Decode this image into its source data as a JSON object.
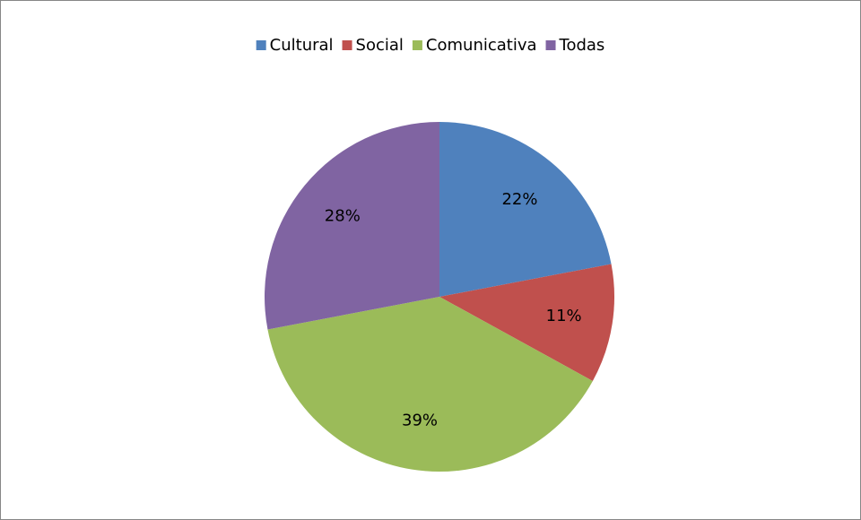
{
  "chart_data": {
    "type": "pie",
    "categories": [
      "Cultural",
      "Social",
      "Comunicativa",
      "Todas"
    ],
    "values": [
      22,
      11,
      39,
      28
    ],
    "value_labels": [
      "22%",
      "11%",
      "39%",
      "28%"
    ],
    "colors": [
      "#4f81bd",
      "#c0504d",
      "#9bbb59",
      "#8064a2"
    ],
    "legend": "top"
  }
}
